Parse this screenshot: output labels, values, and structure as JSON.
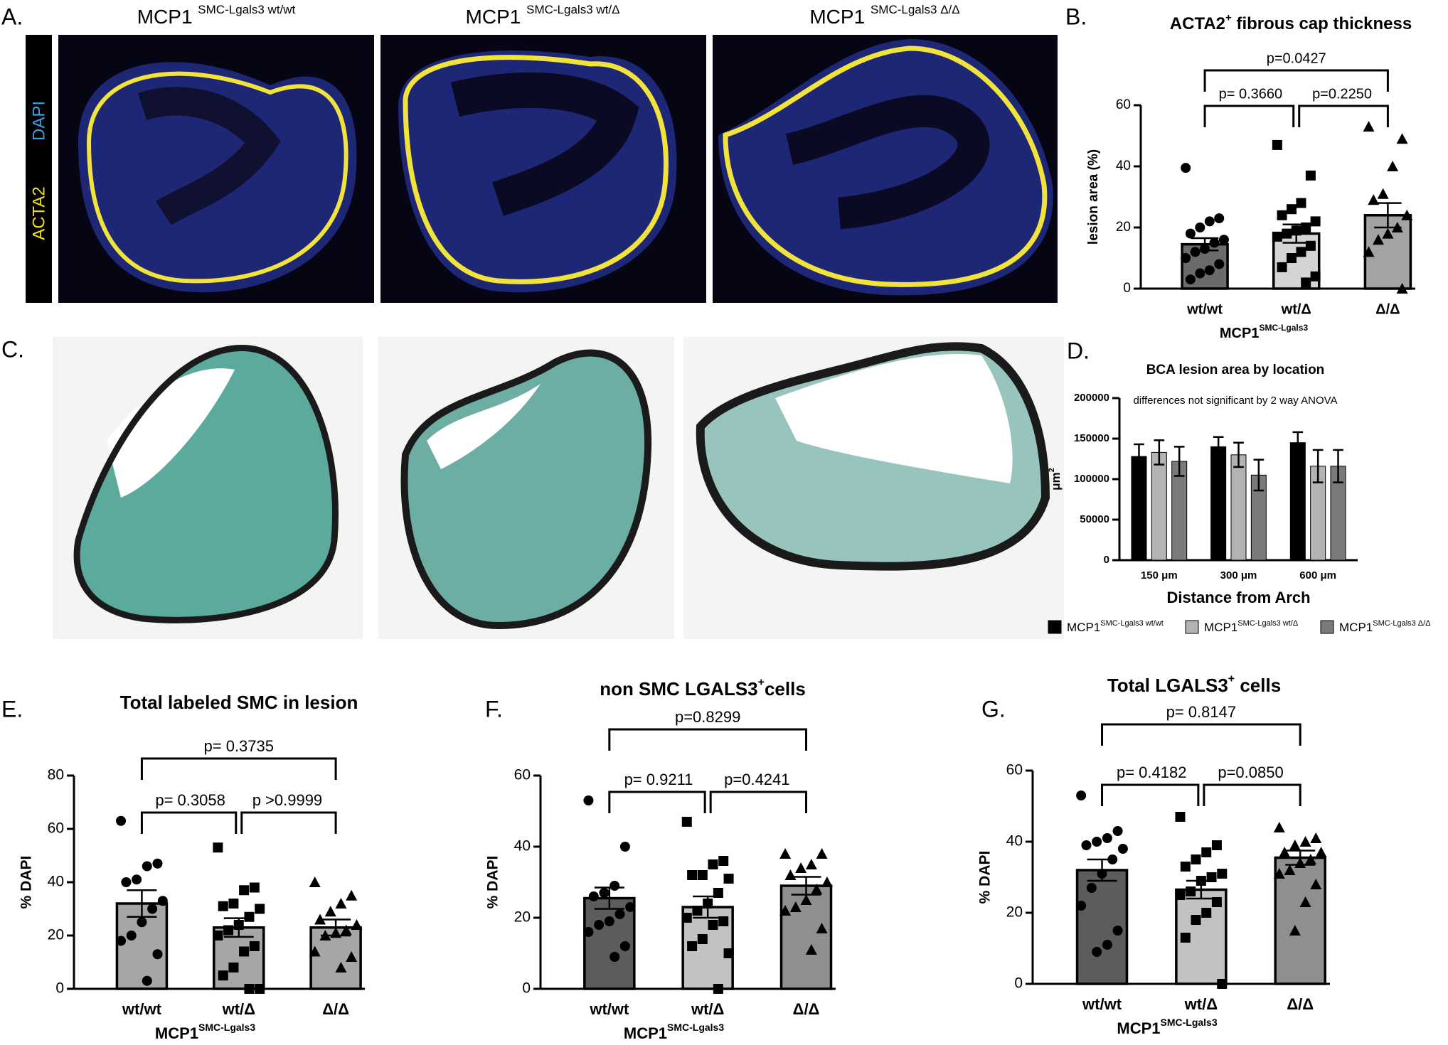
{
  "panel_labels": [
    "A.",
    "B.",
    "C.",
    "D.",
    "E.",
    "F.",
    "G."
  ],
  "image_panel": {
    "titles": [
      [
        {
          "text": "MCP1 "
        },
        {
          "text": "SMC-Lgals3 wt/wt",
          "sup": true
        }
      ],
      [
        {
          "text": "MCP1 "
        },
        {
          "text": "SMC-Lgals3 wt/Δ",
          "sup": true
        }
      ],
      [
        {
          "text": "MCP1 "
        },
        {
          "text": "SMC-Lgals3 Δ/Δ",
          "sup": true
        }
      ]
    ],
    "stains": [
      "DAPI",
      "ACTA2"
    ]
  },
  "chart_data": [
    {
      "type": "bar",
      "title": [
        {
          "text": "ACTA2"
        },
        {
          "text": "+",
          "sup": true
        },
        {
          "text": " fibrous cap thickness"
        }
      ],
      "categories": [
        "wt/wt",
        "wt/Δ",
        "Δ/Δ"
      ],
      "values": [
        14.5,
        18,
        24
      ],
      "errors": [
        2,
        3,
        4
      ],
      "colors": [
        "#6b6b6b",
        "#d4d4d4",
        "#a3a3a3"
      ],
      "markers": [
        "circle",
        "square",
        "triangle"
      ],
      "points": [
        [
          39.5,
          23,
          22,
          20,
          18,
          16,
          15,
          13,
          12,
          10,
          8,
          6,
          5,
          3
        ],
        [
          47,
          37,
          28,
          26,
          24,
          22,
          20,
          19,
          18,
          17,
          14,
          12,
          10,
          7,
          4,
          2
        ],
        [
          53,
          49,
          40,
          31,
          29,
          24,
          20,
          18,
          16,
          12,
          0
        ]
      ],
      "ylim": [
        0,
        60
      ],
      "yticks": [
        0,
        20,
        40,
        60
      ],
      "ylabel": "lesion area (%)",
      "xlabel": [
        {
          "text": "MCP1"
        },
        {
          "text": "SMC-Lgals3",
          "sup": true
        }
      ],
      "comparisons": [
        {
          "groups": [
            "wt/wt",
            "wt/Δ"
          ],
          "label": "p= 0.3660"
        },
        {
          "groups": [
            "wt/Δ",
            "Δ/Δ"
          ],
          "label": "p=0.2250"
        },
        {
          "groups": [
            "wt/wt",
            "Δ/Δ"
          ],
          "label": "p=0.0427"
        }
      ]
    },
    {
      "type": "bar",
      "title": [
        {
          "text": "BCA lesion area by location"
        }
      ],
      "subtitle": "differences not significant by 2 way ANOVA",
      "categories": [
        "150 μm",
        "300 μm",
        "600 μm"
      ],
      "series": [
        {
          "name": [
            {
              "text": "MCP1"
            },
            {
              "text": "SMC-Lgals3 wt/wt",
              "sup": true
            }
          ],
          "color": "#000000",
          "values": [
            128000,
            140000,
            145000
          ],
          "errors": [
            15000,
            12000,
            13000
          ]
        },
        {
          "name": [
            {
              "text": "MCP1"
            },
            {
              "text": "SMC-Lgals3 wt/Δ",
              "sup": true
            }
          ],
          "color": "#b3b3b3",
          "values": [
            133000,
            130000,
            116000
          ],
          "errors": [
            15000,
            15000,
            20000
          ]
        },
        {
          "name": [
            {
              "text": "MCP1"
            },
            {
              "text": "SMC-Lgals3 Δ/Δ",
              "sup": true
            }
          ],
          "color": "#7a7a7a",
          "values": [
            122000,
            105000,
            116000
          ],
          "errors": [
            18000,
            19000,
            20000
          ]
        }
      ],
      "ylim": [
        0,
        200000
      ],
      "yticks": [
        0,
        50000,
        100000,
        150000,
        200000
      ],
      "ylabel": [
        {
          "text": "μm"
        },
        {
          "text": "2",
          "sup": true
        }
      ],
      "xlabel": "Distance from Arch"
    },
    {
      "type": "bar",
      "title": [
        {
          "text": "Total labeled SMC in lesion"
        }
      ],
      "categories": [
        "wt/wt",
        "wt/Δ",
        "Δ/Δ"
      ],
      "values": [
        32,
        23,
        23
      ],
      "errors": [
        5,
        3.5,
        3
      ],
      "colors": [
        "#a6a6a6",
        "#a6a6a6",
        "#a6a6a6"
      ],
      "markers": [
        "circle",
        "square",
        "triangle"
      ],
      "points": [
        [
          63,
          47,
          46,
          41,
          40,
          33,
          30,
          25,
          20,
          18,
          13,
          3
        ],
        [
          53,
          38,
          37,
          32,
          31,
          30,
          27,
          24,
          22,
          20,
          16,
          14,
          8,
          5,
          0,
          0
        ],
        [
          40,
          35,
          32,
          29,
          26,
          24,
          22,
          21,
          20,
          14,
          12,
          8
        ]
      ],
      "ylim": [
        0,
        80
      ],
      "yticks": [
        0,
        20,
        40,
        60,
        80
      ],
      "ylabel": "% DAPI",
      "xlabel": [
        {
          "text": "MCP1"
        },
        {
          "text": "SMC-Lgals3",
          "sup": true
        }
      ],
      "comparisons": [
        {
          "groups": [
            "wt/wt",
            "wt/Δ"
          ],
          "label": "p= 0.3058"
        },
        {
          "groups": [
            "wt/Δ",
            "Δ/Δ"
          ],
          "label": "p >0.9999"
        },
        {
          "groups": [
            "wt/wt",
            "Δ/Δ"
          ],
          "label": "p= 0.3735"
        }
      ]
    },
    {
      "type": "bar",
      "title": [
        {
          "text": "non SMC LGALS3"
        },
        {
          "text": "+",
          "sup": true
        },
        {
          "text": "cells"
        }
      ],
      "categories": [
        "wt/wt",
        "wt/Δ",
        "Δ/Δ"
      ],
      "values": [
        25.5,
        23,
        29
      ],
      "errors": [
        3,
        3,
        2.5
      ],
      "colors": [
        "#5c5c5c",
        "#c2c2c2",
        "#8f8f8f"
      ],
      "markers": [
        "circle",
        "square",
        "triangle"
      ],
      "points": [
        [
          53,
          40,
          29,
          27,
          26,
          23,
          21,
          19,
          18,
          16,
          12,
          9
        ],
        [
          47,
          36,
          35,
          32,
          32,
          31,
          27,
          24,
          22,
          20,
          19,
          18,
          14,
          12,
          10,
          0
        ],
        [
          38,
          38,
          35,
          34,
          32,
          30,
          28,
          25,
          23,
          22,
          17,
          11
        ]
      ],
      "ylim": [
        0,
        60
      ],
      "yticks": [
        0,
        20,
        40,
        60
      ],
      "ylabel": "% DAPI",
      "xlabel": [
        {
          "text": "MCP1"
        },
        {
          "text": "SMC-Lgals3",
          "sup": true
        }
      ],
      "comparisons": [
        {
          "groups": [
            "wt/wt",
            "wt/Δ"
          ],
          "label": "p= 0.9211"
        },
        {
          "groups": [
            "wt/Δ",
            "Δ/Δ"
          ],
          "label": "p=0.4241"
        },
        {
          "groups": [
            "wt/wt",
            "Δ/Δ"
          ],
          "label": "p=0.8299"
        }
      ]
    },
    {
      "type": "bar",
      "title": [
        {
          "text": "Total LGALS3"
        },
        {
          "text": "+",
          "sup": true
        },
        {
          "text": " cells"
        }
      ],
      "categories": [
        "wt/wt",
        "wt/Δ",
        "Δ/Δ"
      ],
      "values": [
        32,
        26.5,
        35.5
      ],
      "errors": [
        3,
        2.5,
        2
      ],
      "colors": [
        "#5c5c5c",
        "#c2c2c2",
        "#8f8f8f"
      ],
      "markers": [
        "circle",
        "square",
        "triangle"
      ],
      "points": [
        [
          53,
          43,
          41,
          40,
          39,
          38,
          35,
          31,
          27,
          22,
          15,
          11,
          9
        ],
        [
          47,
          39,
          37,
          35,
          33,
          31,
          30,
          29,
          26,
          25,
          23,
          20,
          18,
          13,
          0
        ],
        [
          44,
          41,
          40,
          39,
          37,
          37,
          35,
          34,
          32,
          31,
          28,
          23,
          15
        ]
      ],
      "ylim": [
        0,
        60
      ],
      "yticks": [
        0,
        20,
        40,
        60
      ],
      "ylabel": "% DAPI",
      "xlabel": [
        {
          "text": "MCP1"
        },
        {
          "text": "SMC-Lgals3",
          "sup": true
        }
      ],
      "comparisons": [
        {
          "groups": [
            "wt/wt",
            "wt/Δ"
          ],
          "label": "p= 0.4182"
        },
        {
          "groups": [
            "wt/Δ",
            "Δ/Δ"
          ],
          "label": "p=0.0850"
        },
        {
          "groups": [
            "wt/wt",
            "Δ/Δ"
          ],
          "label": "p= 0.8147"
        }
      ]
    }
  ]
}
